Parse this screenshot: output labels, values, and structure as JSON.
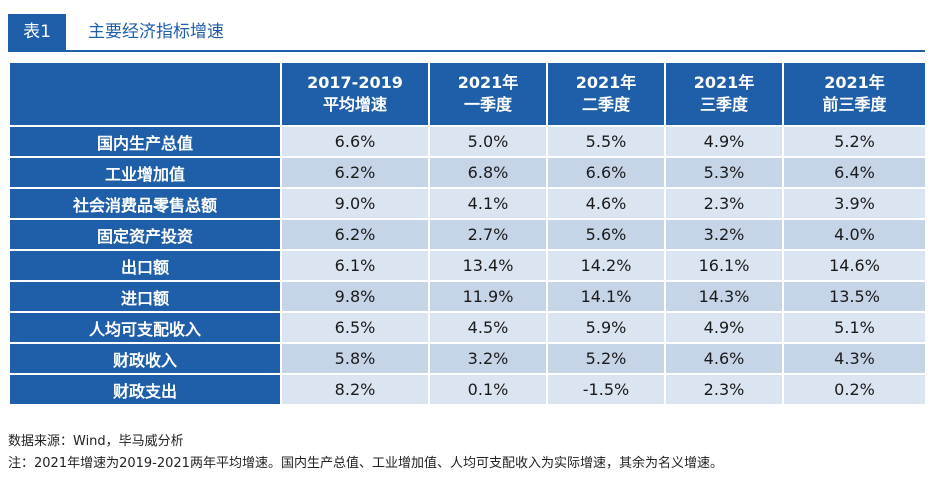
{
  "header": {
    "tag": "表1",
    "title": "主要经济指标增速"
  },
  "table": {
    "columns": [
      {
        "line1": "",
        "line2": ""
      },
      {
        "line1": "2017-2019",
        "line2": "平均增速"
      },
      {
        "line1": "2021年",
        "line2": "一季度"
      },
      {
        "line1": "2021年",
        "line2": "二季度"
      },
      {
        "line1": "2021年",
        "line2": "三季度"
      },
      {
        "line1": "2021年",
        "line2": "前三季度"
      }
    ],
    "rows": [
      {
        "label": "国内生产总值",
        "values": [
          "6.6%",
          "5.0%",
          "5.5%",
          "4.9%",
          "5.2%"
        ]
      },
      {
        "label": "工业增加值",
        "values": [
          "6.2%",
          "6.8%",
          "6.6%",
          "5.3%",
          "6.4%"
        ]
      },
      {
        "label": "社会消费品零售总额",
        "values": [
          "9.0%",
          "4.1%",
          "4.6%",
          "2.3%",
          "3.9%"
        ]
      },
      {
        "label": "固定资产投资",
        "values": [
          "6.2%",
          "2.7%",
          "5.6%",
          "3.2%",
          "4.0%"
        ]
      },
      {
        "label": "出口额",
        "values": [
          "6.1%",
          "13.4%",
          "14.2%",
          "16.1%",
          "14.6%"
        ]
      },
      {
        "label": "进口额",
        "values": [
          "9.8%",
          "11.9%",
          "14.1%",
          "14.3%",
          "13.5%"
        ]
      },
      {
        "label": "人均可支配收入",
        "values": [
          "6.5%",
          "4.5%",
          "5.9%",
          "4.9%",
          "5.1%"
        ]
      },
      {
        "label": "财政收入",
        "values": [
          "5.8%",
          "3.2%",
          "5.2%",
          "4.6%",
          "4.3%"
        ]
      },
      {
        "label": "财政支出",
        "values": [
          "8.2%",
          "0.1%",
          "-1.5%",
          "2.3%",
          "0.2%"
        ]
      }
    ]
  },
  "footer": {
    "source": "数据来源：Wind，毕马威分析",
    "note": "注：2021年增速为2019-2021两年平均增速。国内生产总值、工业增加值、人均可支配收入为实际增速，其余为名义增速。"
  },
  "colors": {
    "accent": "#1f5ea8",
    "row_light": "#dbe4f1",
    "row_dark": "#c6d4e8"
  }
}
